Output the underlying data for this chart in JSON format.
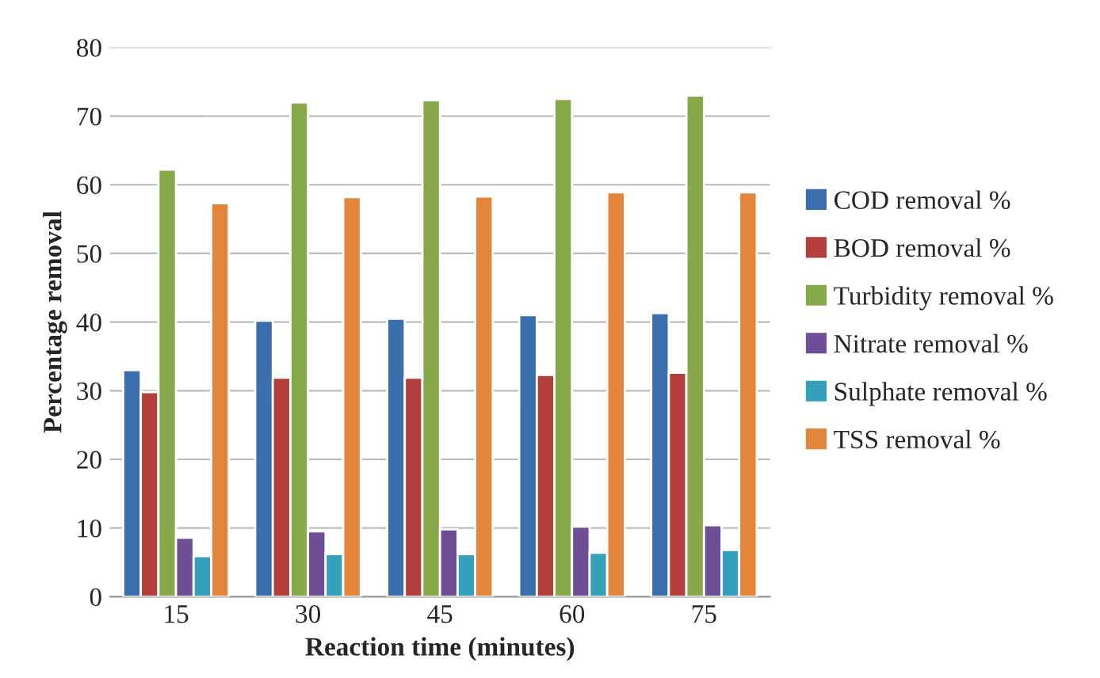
{
  "chart_data": {
    "type": "bar",
    "xlabel": "Reaction time (minutes)",
    "ylabel": "Percentage removal",
    "categories": [
      "15",
      "30",
      "45",
      "60",
      "75"
    ],
    "series": [
      {
        "name": "COD removal %",
        "color": "#3a6eac",
        "values": [
          33,
          40.2,
          40.5,
          41,
          41.3
        ]
      },
      {
        "name": "BOD removal %",
        "color": "#b43e3b",
        "values": [
          29.8,
          31.9,
          31.9,
          32.3,
          32.6
        ]
      },
      {
        "name": "Turbidity removal %",
        "color": "#88a94a",
        "values": [
          62.2,
          72,
          72.3,
          72.5,
          73
        ]
      },
      {
        "name": "Nitrate removal %",
        "color": "#6e4f95",
        "values": [
          8.6,
          9.5,
          9.8,
          10.2,
          10.4
        ]
      },
      {
        "name": "Sulphate removal %",
        "color": "#35a0bb",
        "values": [
          5.9,
          6.2,
          6.2,
          6.4,
          6.8
        ]
      },
      {
        "name": "TSS removal %",
        "color": "#e3853a",
        "values": [
          57.3,
          58.2,
          58.3,
          58.9,
          58.9
        ]
      }
    ],
    "ylim": [
      0,
      80
    ],
    "yticks": [
      0,
      10,
      20,
      30,
      40,
      50,
      60,
      70,
      80
    ],
    "grid": "y",
    "legend": "right"
  }
}
